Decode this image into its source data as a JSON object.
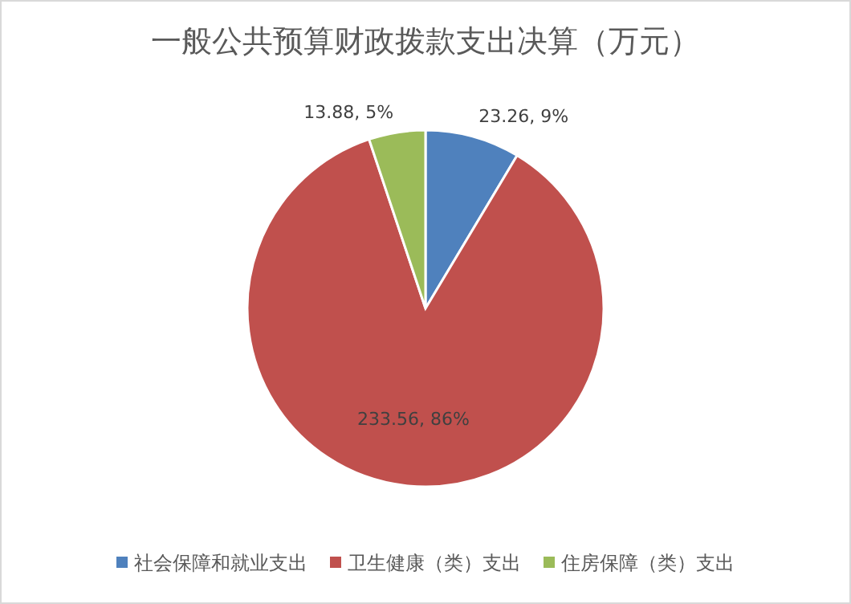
{
  "chart_data": {
    "type": "pie",
    "title": "一般公共预算财政拨款支出决算（万元）",
    "categories": [
      "社会保障和就业支出",
      "卫生健康（类）支出",
      "住房保障（类）支出"
    ],
    "values": [
      23.26,
      233.56,
      13.88
    ],
    "colors": [
      "#4f81bd",
      "#c0504d",
      "#9bbb59"
    ],
    "value_labels": [
      "23.26, 9%",
      "233.56, 86%",
      "13.88, 5%"
    ],
    "legend": "bottom"
  }
}
